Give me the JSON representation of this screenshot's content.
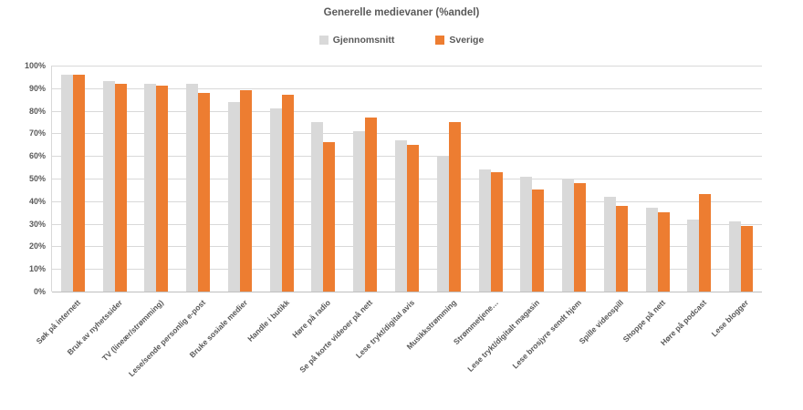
{
  "chart_data": {
    "type": "bar",
    "title": "Generelle medievaner (%andel)",
    "categories": [
      "Søk på internett",
      "Bruk av nyhetssider",
      "TV (lineær/strømming)",
      "Lese/sende personlig e-post",
      "Bruke sosiale medier",
      "Handle i butikk",
      "Høre på radio",
      "Se på korte videoer på nett",
      "Lese trykt/digital avis",
      "Musikkstrømming",
      "Strømmetjene…",
      "Lese trykt/digitalt magasin",
      "Lese brosjyre sendt hjem",
      "Spille videospill",
      "Shoppe på nett",
      "Høre på podcast",
      "Lese blogger"
    ],
    "series": [
      {
        "name": "Gjennomsnitt",
        "color": "#d9d9d9",
        "values": [
          96,
          93,
          92,
          92,
          84,
          81,
          75,
          71,
          67,
          60,
          54,
          51,
          50,
          42,
          37,
          32,
          31
        ]
      },
      {
        "name": "Sverige",
        "color": "#ed7d31",
        "values": [
          96,
          92,
          91,
          88,
          89,
          87,
          66,
          77,
          65,
          75,
          53,
          45,
          48,
          38,
          35,
          43,
          29
        ]
      }
    ],
    "xlabel": "",
    "ylabel": "",
    "ylim": [
      0,
      100
    ],
    "ytick_step": 10,
    "ytick_suffix": "%",
    "grid": true,
    "legend_position": "top",
    "text_color": "#595959",
    "gridline_color": "#d9d9d9"
  }
}
